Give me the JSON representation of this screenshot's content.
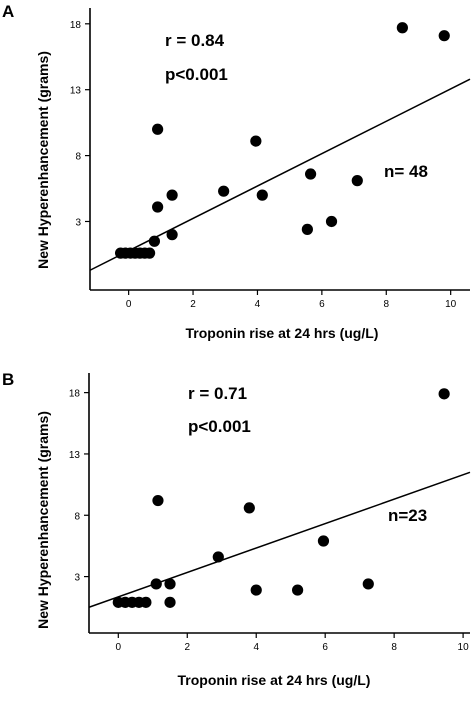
{
  "chart_data": [
    {
      "panel": "A",
      "type": "scatter",
      "xlabel": "Troponin rise at 24 hrs (ug/L)",
      "ylabel": "New Hyperenhancement (grams)",
      "xlim": [
        -1.2,
        10.6
      ],
      "ylim": [
        -2.2,
        19.2
      ],
      "xticks": [
        0,
        2,
        4,
        6,
        8,
        10
      ],
      "yticks": [
        3,
        8,
        13,
        18
      ],
      "grid": false,
      "annotations": {
        "r": "r = 0.84",
        "p": "p<0.001",
        "n": "n= 48"
      },
      "points": [
        {
          "x": -0.25,
          "y": 0.6
        },
        {
          "x": -0.1,
          "y": 0.6
        },
        {
          "x": 0.05,
          "y": 0.6
        },
        {
          "x": 0.2,
          "y": 0.6
        },
        {
          "x": 0.35,
          "y": 0.6
        },
        {
          "x": 0.5,
          "y": 0.6
        },
        {
          "x": 0.65,
          "y": 0.6
        },
        {
          "x": 0.8,
          "y": 1.5
        },
        {
          "x": 0.9,
          "y": 4.1
        },
        {
          "x": 0.9,
          "y": 10.0
        },
        {
          "x": 1.35,
          "y": 2.0
        },
        {
          "x": 1.35,
          "y": 5.0
        },
        {
          "x": 2.95,
          "y": 5.3
        },
        {
          "x": 3.95,
          "y": 9.1
        },
        {
          "x": 4.15,
          "y": 5.0
        },
        {
          "x": 5.55,
          "y": 2.4
        },
        {
          "x": 5.65,
          "y": 6.6
        },
        {
          "x": 6.3,
          "y": 3.0
        },
        {
          "x": 7.1,
          "y": 6.1
        },
        {
          "x": 8.5,
          "y": 17.7
        },
        {
          "x": 9.8,
          "y": 17.1
        }
      ],
      "fit_line": {
        "x": [
          -1.2,
          10.6
        ],
        "y": [
          -0.7,
          13.8
        ]
      }
    },
    {
      "panel": "B",
      "type": "scatter",
      "xlabel": "Troponin rise at 24 hrs (ug/L)",
      "ylabel": "New Hyperenhancement (grams)",
      "xlim": [
        -0.85,
        10.2
      ],
      "ylim": [
        -1.6,
        19.6
      ],
      "xticks": [
        0,
        2,
        4,
        6,
        8,
        10
      ],
      "yticks": [
        3,
        8,
        13,
        18
      ],
      "grid": false,
      "annotations": {
        "r": "r = 0.71",
        "p": "p<0.001",
        "n": "n=23"
      },
      "points": [
        {
          "x": 0.0,
          "y": 0.9
        },
        {
          "x": 0.2,
          "y": 0.9
        },
        {
          "x": 0.4,
          "y": 0.9
        },
        {
          "x": 0.6,
          "y": 0.9
        },
        {
          "x": 0.8,
          "y": 0.9
        },
        {
          "x": 1.1,
          "y": 2.4
        },
        {
          "x": 1.15,
          "y": 9.2
        },
        {
          "x": 1.5,
          "y": 2.4
        },
        {
          "x": 1.5,
          "y": 0.9
        },
        {
          "x": 2.9,
          "y": 4.6
        },
        {
          "x": 3.8,
          "y": 8.6
        },
        {
          "x": 4.0,
          "y": 1.9
        },
        {
          "x": 5.2,
          "y": 1.9
        },
        {
          "x": 5.95,
          "y": 5.9
        },
        {
          "x": 7.25,
          "y": 2.4
        },
        {
          "x": 9.45,
          "y": 17.9
        }
      ],
      "fit_line": {
        "x": [
          -0.85,
          10.2
        ],
        "y": [
          0.5,
          11.5
        ]
      }
    }
  ]
}
